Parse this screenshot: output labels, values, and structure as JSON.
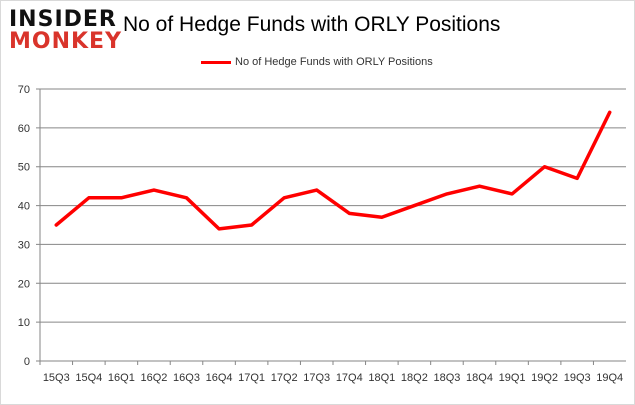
{
  "logo": {
    "line1": "INSIDER",
    "line2": "MONKEY"
  },
  "chart_data": {
    "type": "line",
    "title": "No of Hedge Funds with ORLY Positions",
    "categories": [
      "15Q3",
      "15Q4",
      "16Q1",
      "16Q2",
      "16Q3",
      "16Q4",
      "17Q1",
      "17Q2",
      "17Q3",
      "17Q4",
      "18Q1",
      "18Q2",
      "18Q3",
      "18Q4",
      "19Q1",
      "19Q2",
      "19Q3",
      "19Q4"
    ],
    "series": [
      {
        "name": "No of Hedge Funds with ORLY Positions",
        "color": "#ff0000",
        "values": [
          35,
          42,
          42,
          44,
          42,
          34,
          35,
          42,
          44,
          38,
          37,
          40,
          43,
          45,
          43,
          50,
          47,
          64
        ]
      }
    ],
    "ylim": [
      0,
      70
    ],
    "yticks": [
      0,
      10,
      20,
      30,
      40,
      50,
      60,
      70
    ],
    "grid": true,
    "legend": "top-center",
    "xlabel": "",
    "ylabel": ""
  }
}
